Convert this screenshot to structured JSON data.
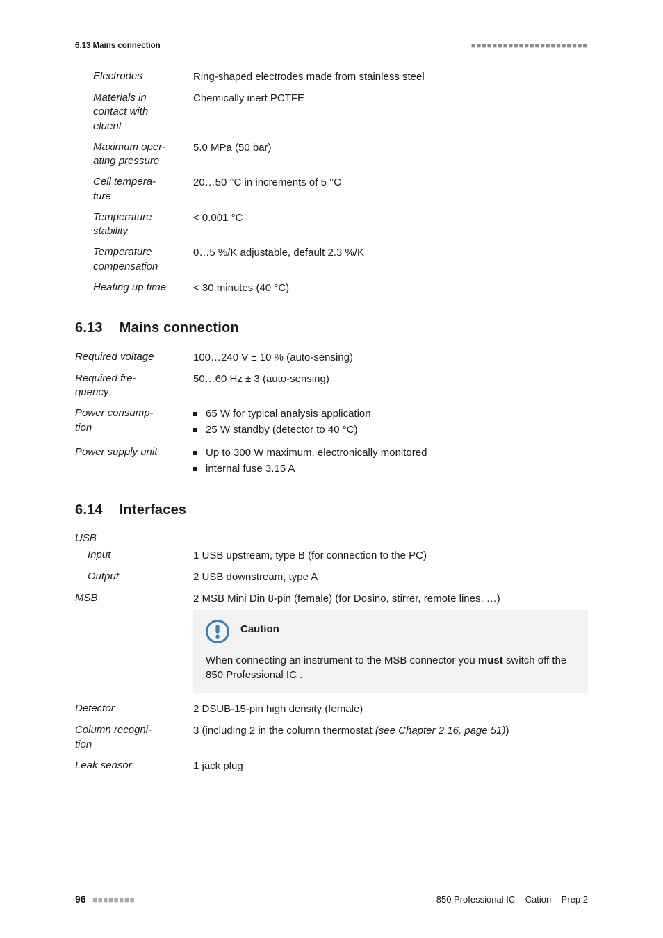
{
  "header": {
    "left": "6.13 Mains connection",
    "right_ticks": "■■■■■■■■■■■■■■■■■■■■■■"
  },
  "section_top": {
    "rows": [
      {
        "label": "Electrodes",
        "value": "Ring-shaped electrodes made from stainless steel"
      },
      {
        "label": "Materials in contact with eluent",
        "value": "Chemically inert PCTFE"
      },
      {
        "label": "Maximum operating pressure",
        "value": "5.0 MPa (50 bar)"
      },
      {
        "label": "Cell temperature",
        "value": "20…50 °C in increments of 5 °C"
      },
      {
        "label": "Temperature stability",
        "value": "< 0.001 °C"
      },
      {
        "label": "Temperature compensation",
        "value": "0…5 %/K adjustable, default 2.3 %/K"
      },
      {
        "label": "Heating up time",
        "value": "< 30 minutes (40 °C)"
      }
    ]
  },
  "sec613": {
    "num": "6.13",
    "title": "Mains connection",
    "rows": [
      {
        "label": "Required voltage",
        "value": "100…240 V ± 10 % (auto-sensing)"
      },
      {
        "label": "Required frequency",
        "value": "50…60 Hz ± 3 (auto-sensing)"
      },
      {
        "label": "Power consumption",
        "bullets": [
          "65 W for typical analysis application",
          "25 W standby (detector to 40 °C)"
        ]
      },
      {
        "label": "Power supply unit",
        "bullets": [
          "Up to 300 W maximum, electronically monitored",
          "internal fuse 3.15 A"
        ]
      }
    ]
  },
  "sec614": {
    "num": "6.14",
    "title": "Interfaces",
    "usb": {
      "heading": "USB",
      "rows": [
        {
          "label": "Input",
          "value": "1 USB upstream, type B (for connection to the PC)"
        },
        {
          "label": "Output",
          "value": "2 USB downstream, type A"
        }
      ]
    },
    "msb": {
      "label": "MSB",
      "value": "2 MSB Mini Din 8-pin (female) (for Dosino, stirrer, remote lines, …)",
      "caution": {
        "title": "Caution",
        "body_pre": "When connecting an instrument to the MSB connector you ",
        "body_bold": "must",
        "body_post": " switch off the 850 Professional IC ."
      }
    },
    "rows_after": [
      {
        "label": "Detector",
        "value": "2 DSUB-15-pin high density (female)"
      },
      {
        "label": "Column recognition",
        "value_pre": "3 (including 2 in the column thermostat ",
        "value_italic": "(see Chapter 2.16, page 51)",
        "value_post": ")"
      },
      {
        "label": "Leak sensor",
        "value": "1 jack plug"
      }
    ]
  },
  "footer": {
    "page": "96",
    "ticks": "■■■■■■■■",
    "doc": "850 Professional IC – Cation – Prep 2"
  },
  "colors": {
    "icon_fill": "#3b7fb8",
    "icon_circle": "#3b7fb8",
    "caution_bg": "#f2f2f2"
  }
}
